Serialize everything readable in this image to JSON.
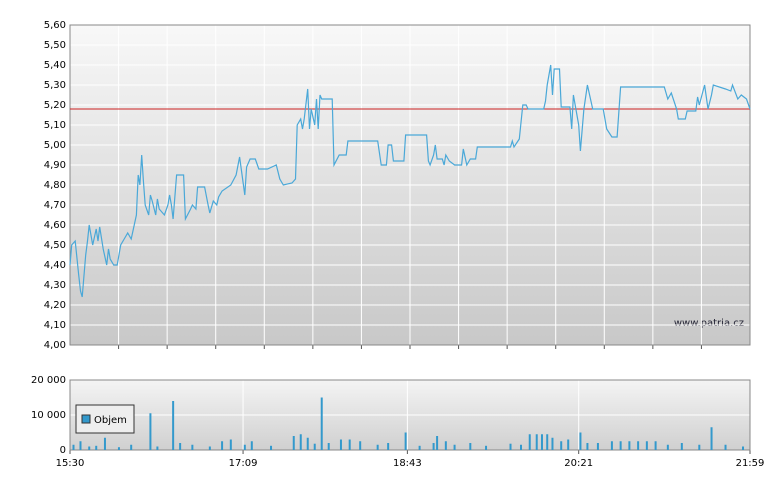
{
  "chart_data": [
    {
      "type": "line",
      "color": "#4aa8d8",
      "xlim": [
        "15:30",
        "21:59"
      ],
      "ylim": [
        4.0,
        5.6
      ],
      "yticks": [
        {
          "value": 4.0,
          "label": "4,00"
        },
        {
          "value": 4.1,
          "label": "4,10"
        },
        {
          "value": 4.2,
          "label": "4,20"
        },
        {
          "value": 4.3,
          "label": "4,30"
        },
        {
          "value": 4.4,
          "label": "4,40"
        },
        {
          "value": 4.5,
          "label": "4,50"
        },
        {
          "value": 4.6,
          "label": "4,60"
        },
        {
          "value": 4.7,
          "label": "4,70"
        },
        {
          "value": 4.8,
          "label": "4,80"
        },
        {
          "value": 4.9,
          "label": "4,90"
        },
        {
          "value": 5.0,
          "label": "5,00"
        },
        {
          "value": 5.1,
          "label": "5,10"
        },
        {
          "value": 5.2,
          "label": "5,20"
        },
        {
          "value": 5.3,
          "label": "5,30"
        },
        {
          "value": 5.4,
          "label": "5,40"
        },
        {
          "value": 5.5,
          "label": "5,50"
        },
        {
          "value": 5.6,
          "label": "5,60"
        }
      ],
      "grid": true,
      "reference_line": {
        "value": 5.18,
        "color": "#cc2222"
      },
      "watermark": "www.patria.cz",
      "x": [
        "15:30",
        "15:31",
        "15:33",
        "15:35",
        "15:36",
        "15:37",
        "15:39",
        "15:40",
        "15:41",
        "15:43",
        "15:45",
        "15:46",
        "15:47",
        "15:49",
        "15:51",
        "15:52",
        "15:53",
        "15:55",
        "15:57",
        "15:59",
        "16:01",
        "16:03",
        "16:05",
        "16:08",
        "16:09",
        "16:10",
        "16:11",
        "16:12",
        "16:13",
        "16:15",
        "16:16",
        "16:17",
        "16:19",
        "16:20",
        "16:21",
        "16:24",
        "16:26",
        "16:27",
        "16:28",
        "16:29",
        "16:31",
        "16:35",
        "16:36",
        "16:39",
        "16:40",
        "16:42",
        "16:43",
        "16:47",
        "16:49",
        "16:50",
        "16:52",
        "16:54",
        "16:55",
        "16:57",
        "17:02",
        "17:05",
        "17:07",
        "17:10",
        "17:11",
        "17:13",
        "17:16",
        "17:18",
        "17:23",
        "17:28",
        "17:30",
        "17:32",
        "17:37",
        "17:39",
        "17:40",
        "17:42",
        "17:43",
        "17:44",
        "17:46",
        "17:47",
        "17:48",
        "17:50",
        "17:51",
        "17:52",
        "17:53",
        "17:54",
        "18:00",
        "18:01",
        "18:04",
        "18:08",
        "18:09",
        "18:26",
        "18:28",
        "18:31",
        "18:32",
        "18:34",
        "18:35",
        "18:41",
        "18:42",
        "18:54",
        "18:55",
        "18:56",
        "18:58",
        "18:59",
        "19:00",
        "19:03",
        "19:04",
        "19:05",
        "19:07",
        "19:10",
        "19:14",
        "19:15",
        "19:17",
        "19:19",
        "19:22",
        "19:23",
        "19:42",
        "19:43",
        "19:44",
        "19:47",
        "19:49",
        "19:51",
        "19:52",
        "20:01",
        "20:02",
        "20:03",
        "20:05",
        "20:06",
        "20:07",
        "20:10",
        "20:11",
        "20:16",
        "20:17",
        "20:18",
        "20:21",
        "20:22",
        "20:24",
        "20:26",
        "20:29",
        "20:33",
        "20:35",
        "20:37",
        "20:40",
        "20:42",
        "20:43",
        "20:45",
        "21:10",
        "21:12",
        "21:14",
        "21:17",
        "21:18",
        "21:22",
        "21:23",
        "21:28",
        "21:29",
        "21:30",
        "21:33",
        "21:35",
        "21:37",
        "21:38",
        "21:45",
        "21:48",
        "21:49",
        "21:52",
        "21:54",
        "21:57",
        "21:59"
      ],
      "values": [
        4.4,
        4.5,
        4.52,
        4.35,
        4.27,
        4.24,
        4.45,
        4.52,
        4.6,
        4.5,
        4.58,
        4.52,
        4.59,
        4.48,
        4.4,
        4.48,
        4.43,
        4.4,
        4.4,
        4.5,
        4.53,
        4.56,
        4.53,
        4.65,
        4.85,
        4.8,
        4.95,
        4.82,
        4.7,
        4.65,
        4.75,
        4.72,
        4.65,
        4.73,
        4.68,
        4.65,
        4.7,
        4.75,
        4.7,
        4.63,
        4.85,
        4.85,
        4.63,
        4.68,
        4.7,
        4.68,
        4.79,
        4.79,
        4.7,
        4.66,
        4.72,
        4.7,
        4.74,
        4.77,
        4.8,
        4.85,
        4.94,
        4.75,
        4.89,
        4.93,
        4.93,
        4.88,
        4.88,
        4.9,
        4.83,
        4.8,
        4.81,
        4.83,
        5.1,
        5.13,
        5.08,
        5.13,
        5.28,
        5.08,
        5.18,
        5.1,
        5.23,
        5.08,
        5.25,
        5.23,
        5.23,
        4.9,
        4.95,
        4.95,
        5.02,
        5.02,
        4.9,
        4.9,
        5.0,
        5.0,
        4.92,
        4.92,
        5.05,
        5.05,
        4.92,
        4.9,
        4.95,
        5.0,
        4.93,
        4.93,
        4.9,
        4.95,
        4.92,
        4.9,
        4.9,
        4.98,
        4.9,
        4.93,
        4.93,
        4.99,
        4.99,
        5.02,
        4.99,
        5.03,
        5.2,
        5.2,
        5.18,
        5.18,
        5.22,
        5.3,
        5.4,
        5.25,
        5.38,
        5.38,
        5.19,
        5.19,
        5.08,
        5.25,
        5.1,
        4.97,
        5.18,
        5.3,
        5.18,
        5.18,
        5.18,
        5.08,
        5.04,
        5.04,
        5.04,
        5.29,
        5.29,
        5.23,
        5.26,
        5.18,
        5.13,
        5.13,
        5.17,
        5.17,
        5.24,
        5.2,
        5.3,
        5.18,
        5.25,
        5.3,
        5.28,
        5.27,
        5.3,
        5.23,
        5.25,
        5.23,
        5.18
      ]
    },
    {
      "type": "bar",
      "xlim": [
        "15:30",
        "21:59"
      ],
      "xticks": [
        "15:30",
        "17:09",
        "18:43",
        "20:21",
        "21:59"
      ],
      "ylim": [
        0,
        20000
      ],
      "yticks": [
        0,
        {
          "value": 10000,
          "label": "10 000"
        },
        {
          "value": 20000,
          "label": "20 000"
        }
      ],
      "grid": true,
      "legend": "top-left",
      "x": [
        "15:32",
        "15:36",
        "15:41",
        "15:45",
        "15:50",
        "15:58",
        "16:05",
        "16:16",
        "16:20",
        "16:29",
        "16:33",
        "16:40",
        "16:50",
        "16:57",
        "17:02",
        "17:10",
        "17:14",
        "17:25",
        "17:38",
        "17:42",
        "17:46",
        "17:50",
        "17:54",
        "17:58",
        "18:05",
        "18:10",
        "18:16",
        "18:26",
        "18:32",
        "18:42",
        "18:50",
        "18:58",
        "19:00",
        "19:05",
        "19:10",
        "19:19",
        "19:28",
        "19:42",
        "19:48",
        "19:53",
        "19:57",
        "20:00",
        "20:03",
        "20:06",
        "20:11",
        "20:15",
        "20:22",
        "20:26",
        "20:32",
        "20:40",
        "20:45",
        "20:50",
        "20:55",
        "21:00",
        "21:05",
        "21:12",
        "21:20",
        "21:30",
        "21:37",
        "21:45",
        "21:55"
      ],
      "series": [
        {
          "name": "Objem",
          "color": "#3399cc",
          "values": [
            1500,
            2500,
            1000,
            1200,
            3500,
            800,
            1500,
            10500,
            1000,
            14000,
            2000,
            1500,
            1000,
            2500,
            3000,
            1500,
            2500,
            1200,
            4000,
            4500,
            3500,
            1800,
            15000,
            2000,
            3000,
            3000,
            2500,
            1500,
            2000,
            5000,
            1200,
            2000,
            4000,
            2500,
            1500,
            2000,
            1200,
            1800,
            1500,
            4500,
            4500,
            4500,
            4500,
            3500,
            2500,
            3000,
            5000,
            2000,
            2000,
            2500,
            2500,
            2500,
            2500,
            2500,
            2500,
            1500,
            2000,
            1500,
            6500,
            1500,
            1000
          ]
        }
      ]
    }
  ]
}
